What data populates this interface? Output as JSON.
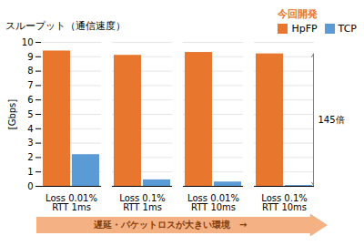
{
  "chart_data": {
    "type": "bar",
    "title": "スループット（通信速度）",
    "ylabel": "[Gbps]",
    "categories": [
      "Loss 0.01%\nRTT 1ms",
      "Loss 0.1%\nRTT 1ms",
      "Loss 0.01%\nRTT 10ms",
      "Loss 0.1%\nRTT 10ms"
    ],
    "series": [
      {
        "name": "HpFP",
        "color": "#E8762C",
        "values": [
          9.4,
          9.1,
          9.3,
          9.2
        ]
      },
      {
        "name": "TCP",
        "color": "#5B9BD5",
        "values": [
          2.2,
          0.45,
          0.3,
          0.06
        ]
      }
    ],
    "ylim": [
      0,
      10
    ],
    "yticks": [
      0,
      1,
      2,
      3,
      4,
      5,
      6,
      7,
      8,
      9,
      10
    ],
    "grid": true,
    "legend": "upper right",
    "annotations": [
      {
        "text": "今回開発",
        "color": "#E8762C"
      },
      {
        "text": "145倍",
        "color": "#000000",
        "arrow_color": "#808080"
      },
      {
        "text": "遅延・パケットロスが大きい環境　→",
        "color": "#843C0C",
        "arrow_color": "#F4B183"
      }
    ]
  }
}
